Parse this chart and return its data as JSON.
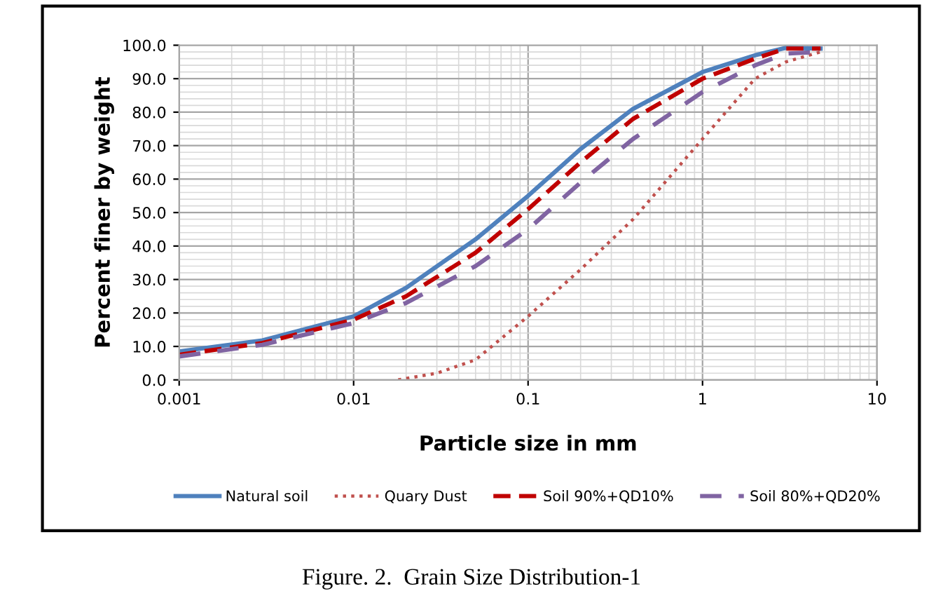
{
  "chart_data": {
    "type": "line",
    "xlabel": "Particle size in mm",
    "ylabel": "Percent finer by weight",
    "log": "x",
    "xlim": [
      0.001,
      10
    ],
    "xticks": [
      0.001,
      0.01,
      0.1,
      1,
      10
    ],
    "ylim": [
      0,
      100
    ],
    "yticks": [
      {
        "value": 0,
        "label": "0.0"
      },
      {
        "value": 10,
        "label": "10.0"
      },
      {
        "value": 20,
        "label": "20.0"
      },
      {
        "value": 30,
        "label": "30.0"
      },
      {
        "value": 40,
        "label": "40.0"
      },
      {
        "value": 50,
        "label": "50.0"
      },
      {
        "value": 60,
        "label": "60.0"
      },
      {
        "value": 70,
        "label": "70.0"
      },
      {
        "value": 80,
        "label": "80.0"
      },
      {
        "value": 90,
        "label": "90.0"
      },
      {
        "value": 100,
        "label": "100.0"
      }
    ],
    "grid": true,
    "legend": "bottom",
    "marker": "none",
    "series": [
      {
        "name": "Natural soil",
        "color": "#4f81bd",
        "line_style": "solid",
        "x": [
          0.001,
          0.003,
          0.01,
          0.02,
          0.05,
          0.1,
          0.2,
          0.4,
          1,
          2,
          3,
          4.75
        ],
        "values": [
          8.5,
          11.8,
          19,
          27.5,
          42,
          55,
          69,
          81,
          92,
          97,
          99.2,
          99
        ]
      },
      {
        "name": "Quary Dust",
        "color": "#c0504d",
        "line_style": "dotted",
        "x": [
          0.018,
          0.03,
          0.05,
          0.1,
          0.2,
          0.4,
          1,
          2,
          3,
          4.75
        ],
        "values": [
          0,
          2,
          6,
          19,
          33,
          48,
          72,
          90,
          95,
          98
        ]
      },
      {
        "name": "Soil 90%+QD10%",
        "color": "#c00000",
        "line_style": "dashed",
        "x": [
          0.001,
          0.003,
          0.01,
          0.02,
          0.05,
          0.1,
          0.2,
          0.4,
          1,
          2,
          3,
          4.75
        ],
        "values": [
          7.5,
          11,
          18,
          25,
          38,
          51,
          65,
          78,
          90,
          96,
          99,
          99
        ]
      },
      {
        "name": "Soil 80%+QD20%",
        "color": "#8064a2",
        "line_style": "dashed",
        "x": [
          0.001,
          0.003,
          0.01,
          0.02,
          0.05,
          0.1,
          0.2,
          0.4,
          1,
          2,
          3,
          4.75
        ],
        "values": [
          7,
          10.5,
          17,
          23,
          34,
          45,
          59,
          72,
          86,
          94,
          97.5,
          98
        ]
      }
    ],
    "annotations": [
      "Figure. 2.  Grain Size Distribution-1"
    ]
  }
}
